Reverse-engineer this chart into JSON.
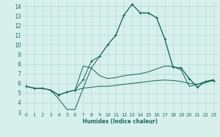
{
  "xlabel": "Humidex (Indice chaleur)",
  "xlim": [
    -0.5,
    23.5
  ],
  "ylim": [
    3,
    14.5
  ],
  "yticks": [
    3,
    4,
    5,
    6,
    7,
    8,
    9,
    10,
    11,
    12,
    13,
    14
  ],
  "xticks": [
    0,
    1,
    2,
    3,
    4,
    5,
    6,
    7,
    8,
    9,
    10,
    11,
    12,
    13,
    14,
    15,
    16,
    17,
    18,
    19,
    20,
    21,
    22,
    23
  ],
  "line_color": "#1a6b5a",
  "bg_color": "#d8f0ec",
  "grid_color": "#b0d8d0",
  "line1_x": [
    0,
    1,
    2,
    3,
    4,
    5,
    6,
    7,
    8,
    9,
    10,
    11,
    12,
    13,
    14,
    15,
    16,
    17,
    18,
    19,
    20,
    21,
    22,
    23
  ],
  "line1_y": [
    5.7,
    5.5,
    5.5,
    5.3,
    4.8,
    5.1,
    5.3,
    5.5,
    5.6,
    5.7,
    5.7,
    5.8,
    5.9,
    6.0,
    6.1,
    6.2,
    6.3,
    6.35,
    6.3,
    6.2,
    6.0,
    5.9,
    6.1,
    6.3
  ],
  "line2_x": [
    0,
    1,
    2,
    3,
    4,
    5,
    6,
    7,
    8,
    9,
    10,
    11,
    12,
    13,
    14,
    15,
    16,
    17,
    18,
    19,
    20,
    21,
    22,
    23
  ],
  "line2_y": [
    5.7,
    5.5,
    5.5,
    5.3,
    4.8,
    5.1,
    5.3,
    6.4,
    8.3,
    8.8,
    10.0,
    11.0,
    13.1,
    14.2,
    13.3,
    13.3,
    12.8,
    10.6,
    7.7,
    7.6,
    6.5,
    5.6,
    6.2,
    6.3
  ],
  "line3_x": [
    0,
    1,
    2,
    3,
    4,
    5,
    6,
    7,
    8,
    9,
    10,
    11,
    12,
    13,
    14,
    15,
    16,
    17,
    18,
    19,
    20,
    21,
    22,
    23
  ],
  "line3_y": [
    5.7,
    5.5,
    5.5,
    5.3,
    4.4,
    3.3,
    3.3,
    5.5,
    7.6,
    8.8,
    10.0,
    11.0,
    13.1,
    14.2,
    13.3,
    13.3,
    12.8,
    10.6,
    7.7,
    7.6,
    6.5,
    5.6,
    6.2,
    6.3
  ],
  "line4_x": [
    0,
    1,
    2,
    3,
    4,
    5,
    6,
    7,
    8,
    9,
    10,
    11,
    12,
    13,
    14,
    15,
    16,
    17,
    18,
    19,
    20,
    21,
    22,
    23
  ],
  "line4_y": [
    5.7,
    5.5,
    5.5,
    5.3,
    4.8,
    5.1,
    5.3,
    7.8,
    7.6,
    6.8,
    6.5,
    6.6,
    6.8,
    6.9,
    7.0,
    7.2,
    7.5,
    7.8,
    7.75,
    7.4,
    5.7,
    5.9,
    6.2,
    6.4
  ]
}
